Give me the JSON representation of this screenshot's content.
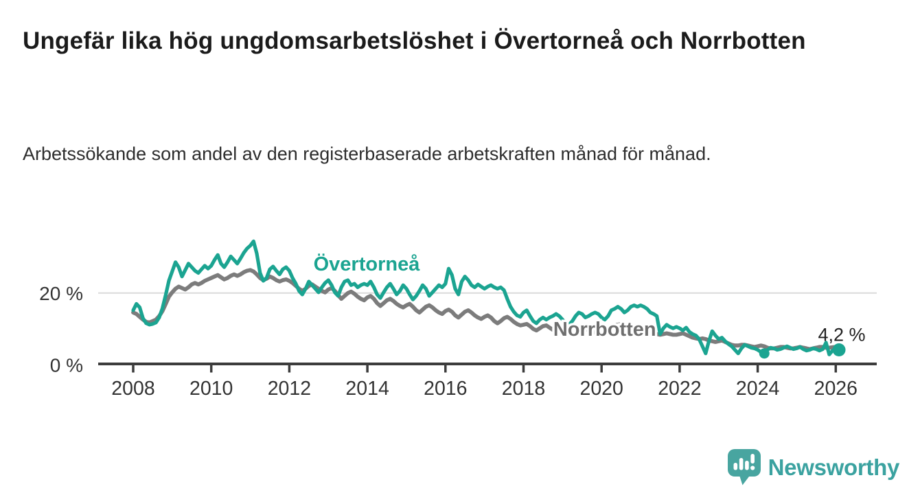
{
  "header": {
    "title": "Ungefär lika hög ungdomsarbetslöshet i Övertorneå och Norrbotten",
    "subtitle": "Arbetssökande som andel av den registerbaserade arbetskraften månad för månad."
  },
  "footer": {
    "brand": "Newsworthy"
  },
  "colors": {
    "overtornea": "#1BA491",
    "norrbotten": "#7C7C7C",
    "norrbotten_label": "#6F6F6F",
    "axis": "#3C3C3C",
    "tick_text": "#333333",
    "grid": "#DADADA",
    "annotation_text": "#1F1F1F",
    "logo": "#48A5A0"
  },
  "chart_data": {
    "type": "line",
    "title": "Ungefär lika hög ungdomsarbetslöshet i Övertorneå och Norrbotten",
    "subtitle": "Arbetssökande som andel av den registerbaserade arbetskraften månad för månad.",
    "unit": "%",
    "frequency": "monthly",
    "x_start_year": 2008,
    "x_start_month": 1,
    "xlim": [
      2007.1,
      2027.05
    ],
    "ylim": [
      0,
      36
    ],
    "grid": "horizontal line at 20 % only",
    "legend_position": "inline labels on lines",
    "xticks": [
      2008,
      2010,
      2012,
      2014,
      2016,
      2018,
      2020,
      2022,
      2024,
      2026
    ],
    "yticks": [
      {
        "value": 0,
        "label": "0 %"
      },
      {
        "value": 20,
        "label": "20 %"
      }
    ],
    "series": [
      {
        "name": "Övertorneå",
        "color_key": "overtornea",
        "label_color_key": "overtornea",
        "stroke_width": 5.2,
        "label_pos": {
          "t": 2013.98,
          "v": 26.3
        },
        "values": [
          15.2,
          17.0,
          16.0,
          13.0,
          11.6,
          11.2,
          11.4,
          11.8,
          13.2,
          15.8,
          19.5,
          23.5,
          26.0,
          28.6,
          27.2,
          24.6,
          26.4,
          28.2,
          27.2,
          26.2,
          25.6,
          26.6,
          27.6,
          26.8,
          27.6,
          29.2,
          30.6,
          28.2,
          27.2,
          28.6,
          30.2,
          29.2,
          28.2,
          29.6,
          31.2,
          32.4,
          33.2,
          34.4,
          31.0,
          25.6,
          23.4,
          24.2,
          26.6,
          27.4,
          26.2,
          25.2,
          26.6,
          27.2,
          26.2,
          24.2,
          22.6,
          20.6,
          19.6,
          21.2,
          23.2,
          22.2,
          21.2,
          20.2,
          21.6,
          22.8,
          23.6,
          22.2,
          20.2,
          19.2,
          21.6,
          23.2,
          23.6,
          22.2,
          22.6,
          21.6,
          22.2,
          22.6,
          22.2,
          23.2,
          21.6,
          19.6,
          18.6,
          20.2,
          21.6,
          22.6,
          21.2,
          19.6,
          20.6,
          22.2,
          21.2,
          19.6,
          18.2,
          19.2,
          20.6,
          22.2,
          21.2,
          19.2,
          20.2,
          21.2,
          22.2,
          21.6,
          22.6,
          26.8,
          25.0,
          21.2,
          19.6,
          23.2,
          24.6,
          23.6,
          22.2,
          21.6,
          22.4,
          21.8,
          21.2,
          21.8,
          22.2,
          21.6,
          21.2,
          21.6,
          20.8,
          18.4,
          16.2,
          14.8,
          13.8,
          13.4,
          14.6,
          15.2,
          13.6,
          12.2,
          11.6,
          12.6,
          13.2,
          12.6,
          13.2,
          13.6,
          14.2,
          13.6,
          12.6,
          11.6,
          11.2,
          12.2,
          13.6,
          14.6,
          14.2,
          13.2,
          13.6,
          14.2,
          14.6,
          14.2,
          13.2,
          12.6,
          13.6,
          15.2,
          15.6,
          16.2,
          15.6,
          14.6,
          15.2,
          16.2,
          16.6,
          16.2,
          16.6,
          16.2,
          15.6,
          14.6,
          14.2,
          13.6,
          8.6,
          10.2,
          11.2,
          10.6,
          10.2,
          10.6,
          10.2,
          9.6,
          10.4,
          9.2,
          8.6,
          8.2,
          7.2,
          5.2,
          3.2,
          6.6,
          9.4,
          8.2,
          7.2,
          7.6,
          6.6,
          5.8,
          5.2,
          4.2,
          3.2,
          4.6,
          5.6,
          5.2,
          4.8,
          4.6,
          4.2,
          3.6,
          3.2,
          4.2,
          4.8,
          4.6,
          4.2,
          4.4,
          4.8,
          5.2,
          4.8,
          4.4,
          4.6,
          5.0,
          4.4,
          4.0,
          4.2,
          4.6,
          4.4,
          4.0,
          4.4,
          6.2,
          2.9,
          4.0,
          4.3,
          4.2
        ]
      },
      {
        "name": "Norrbotten",
        "color_key": "norrbotten",
        "label_color_key": "norrbotten_label",
        "stroke_width": 5.8,
        "label_pos": {
          "t": 2020.08,
          "v": 8.1
        },
        "values": [
          14.6,
          14.2,
          13.4,
          12.6,
          12.0,
          11.8,
          12.2,
          12.6,
          13.6,
          15.0,
          17.0,
          19.0,
          20.2,
          21.2,
          21.8,
          21.4,
          21.0,
          21.6,
          22.4,
          22.8,
          22.4,
          22.8,
          23.4,
          23.8,
          24.2,
          24.6,
          25.0,
          24.4,
          23.8,
          24.2,
          24.8,
          25.2,
          24.8,
          25.2,
          25.8,
          26.2,
          26.4,
          26.0,
          25.2,
          24.2,
          23.6,
          24.0,
          24.6,
          24.2,
          23.6,
          23.2,
          23.6,
          23.8,
          23.4,
          22.8,
          22.0,
          21.2,
          20.6,
          21.2,
          22.0,
          22.4,
          21.8,
          21.2,
          20.6,
          20.2,
          21.0,
          21.4,
          20.6,
          19.4,
          18.4,
          19.2,
          20.0,
          20.4,
          19.8,
          19.0,
          18.4,
          18.0,
          18.8,
          19.2,
          18.4,
          17.2,
          16.4,
          17.2,
          18.0,
          18.4,
          17.8,
          17.0,
          16.4,
          16.0,
          16.6,
          17.0,
          16.2,
          15.2,
          14.6,
          15.4,
          16.2,
          16.6,
          16.0,
          15.2,
          14.6,
          14.2,
          15.0,
          15.4,
          14.8,
          13.8,
          13.2,
          14.0,
          14.8,
          15.2,
          14.6,
          13.8,
          13.2,
          12.8,
          13.4,
          13.8,
          13.2,
          12.2,
          11.6,
          12.2,
          13.0,
          13.4,
          12.8,
          12.0,
          11.4,
          11.0,
          11.2,
          11.4,
          10.8,
          10.0,
          9.6,
          10.2,
          10.8,
          11.0,
          10.4,
          9.8,
          9.4,
          9.2,
          9.6,
          9.8,
          9.4,
          8.8,
          8.6,
          9.2,
          9.8,
          10.0,
          9.6,
          9.2,
          9.0,
          9.0,
          9.4,
          9.8,
          10.2,
          10.8,
          11.0,
          11.2,
          11.4,
          11.2,
          10.8,
          10.4,
          10.2,
          10.0,
          10.2,
          10.0,
          9.6,
          9.2,
          8.8,
          8.6,
          8.4,
          8.6,
          8.8,
          8.6,
          8.4,
          8.4,
          8.6,
          8.8,
          8.4,
          8.0,
          7.6,
          7.4,
          7.2,
          7.4,
          7.2,
          6.8,
          6.6,
          6.4,
          6.6,
          6.8,
          6.4,
          6.0,
          5.6,
          5.4,
          5.4,
          5.6,
          5.6,
          5.4,
          5.2,
          5.0,
          5.2,
          5.4,
          5.2,
          4.8,
          4.6,
          4.6,
          4.8,
          5.0,
          5.0,
          4.8,
          4.6,
          4.6,
          4.8,
          5.0,
          4.8,
          4.6,
          4.4,
          4.6,
          4.8,
          5.0,
          5.0,
          4.8,
          4.8,
          4.9,
          5.0,
          5.0
        ]
      }
    ],
    "markers": [
      {
        "id": "low-point",
        "series": "Övertorneå",
        "t": 2024.17,
        "v": 3.2,
        "radius": 7.5
      },
      {
        "id": "latest-point",
        "series": "Övertorneå",
        "t": 2026.083,
        "v": 4.2,
        "radius": 9.5
      }
    ],
    "annotation": {
      "text": "4,2 %",
      "t": 2026.083,
      "v": 4.2
    }
  }
}
